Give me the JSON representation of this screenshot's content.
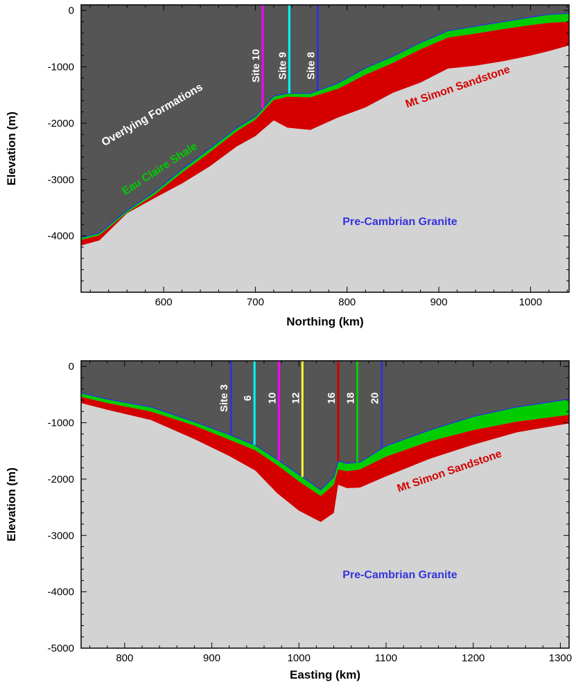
{
  "chart_data": [
    {
      "type": "area",
      "xlabel": "Northing (km)",
      "ylabel": "Elevation (m)",
      "xlim": [
        510,
        1042
      ],
      "ylim": [
        -5000,
        100
      ],
      "x_ticks": [
        600,
        700,
        800,
        900,
        1000
      ],
      "y_ticks": [
        0,
        -1000,
        -2000,
        -3000,
        -4000
      ],
      "colors": {
        "overlying": "#555555",
        "shale": "#00cc00",
        "sandstone": "#d40000",
        "granite": "#d3d3d3",
        "shale_top_line": "#2a2af0"
      },
      "layers": {
        "x": [
          510,
          530,
          560,
          590,
          620,
          650,
          680,
          700,
          720,
          735,
          760,
          790,
          820,
          850,
          880,
          910,
          940,
          970,
          1000,
          1020,
          1042
        ],
        "shale_top": [
          -4030,
          -3950,
          -3550,
          -3220,
          -2820,
          -2450,
          -2080,
          -1880,
          -1520,
          -1470,
          -1470,
          -1290,
          -1020,
          -810,
          -570,
          -360,
          -280,
          -200,
          -120,
          -70,
          -50
        ],
        "sandstone_top": [
          -4070,
          -3990,
          -3590,
          -3270,
          -2880,
          -2520,
          -2140,
          -1940,
          -1590,
          -1530,
          -1540,
          -1390,
          -1140,
          -930,
          -690,
          -480,
          -410,
          -330,
          -260,
          -220,
          -200
        ],
        "granite_top": [
          -4170,
          -4080,
          -3600,
          -3330,
          -3070,
          -2770,
          -2410,
          -2230,
          -1950,
          -2080,
          -2120,
          -1900,
          -1720,
          -1460,
          -1280,
          -1030,
          -980,
          -900,
          -800,
          -720,
          -620
        ]
      },
      "sites": [
        {
          "label": "Site 10",
          "x": 708,
          "color": "#ff00ff"
        },
        {
          "label": "Site 9",
          "x": 737,
          "color": "#00ffff"
        },
        {
          "label": "Site 8",
          "x": 768,
          "color": "#3333cc"
        }
      ],
      "formation_labels": {
        "overlying": {
          "text": "Overlying Formations",
          "color": "#ffffff"
        },
        "shale": {
          "text": "Eau Claire Shale",
          "color": "#00cc00"
        },
        "sandstone": {
          "text": "Mt Simon Sandstone",
          "color": "#d40000"
        },
        "granite": {
          "text": "Pre-Cambrian Granite",
          "color": "#3333dd"
        }
      }
    },
    {
      "type": "area",
      "xlabel": "Easting (km)",
      "ylabel": "Elevation (m)",
      "xlim": [
        750,
        1310
      ],
      "ylim": [
        -5000,
        100
      ],
      "x_ticks": [
        800,
        900,
        1000,
        1100,
        1200,
        1300
      ],
      "y_ticks": [
        0,
        -1000,
        -2000,
        -3000,
        -4000,
        -5000
      ],
      "layers": {
        "x": [
          750,
          780,
          830,
          880,
          920,
          950,
          975,
          1000,
          1025,
          1040,
          1045,
          1055,
          1070,
          1100,
          1150,
          1200,
          1250,
          1310
        ],
        "shale_top": [
          -470,
          -580,
          -720,
          -980,
          -1210,
          -1400,
          -1650,
          -1920,
          -2190,
          -1960,
          -1680,
          -1720,
          -1700,
          -1410,
          -1130,
          -890,
          -720,
          -580
        ],
        "sandstone_top": [
          -540,
          -650,
          -800,
          -1050,
          -1300,
          -1490,
          -1750,
          -2040,
          -2300,
          -2100,
          -1830,
          -1860,
          -1830,
          -1600,
          -1330,
          -1130,
          -980,
          -860
        ],
        "granite_top": [
          -650,
          -770,
          -950,
          -1290,
          -1590,
          -1850,
          -2250,
          -2560,
          -2760,
          -2600,
          -2100,
          -2160,
          -2150,
          -1950,
          -1640,
          -1390,
          -1170,
          -1010
        ]
      },
      "sites": [
        {
          "label": "Site 3",
          "x": 922,
          "color": "#3333cc"
        },
        {
          "label": "6",
          "x": 949,
          "color": "#00ffff"
        },
        {
          "label": "10",
          "x": 977,
          "color": "#ff00ff"
        },
        {
          "label": "12",
          "x": 1004,
          "color": "#ffff33"
        },
        {
          "label": "16",
          "x": 1045,
          "color": "#d40000"
        },
        {
          "label": "18",
          "x": 1067,
          "color": "#00cc00"
        },
        {
          "label": "20",
          "x": 1095,
          "color": "#3333cc"
        }
      ],
      "formation_labels": {
        "sandstone": {
          "text": "Mt Simon Sandstone",
          "color": "#d40000"
        },
        "granite": {
          "text": "Pre-Cambrian Granite",
          "color": "#3333dd"
        }
      }
    }
  ]
}
